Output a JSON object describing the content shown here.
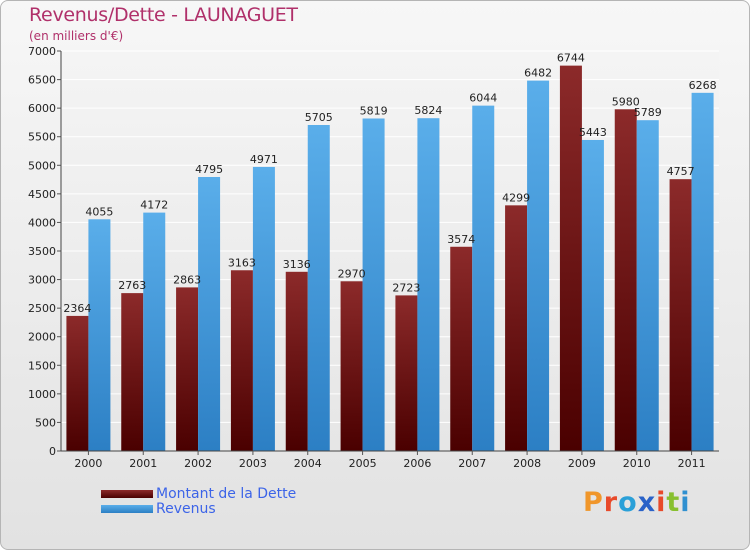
{
  "title": "Revenus/Dette - LAUNAGUET",
  "subtitle": "(en milliers d'€)",
  "brand": {
    "text": "Proxiti",
    "letter_colors": [
      "#f0962a",
      "#e84a2a",
      "#2aa0d8",
      "#2a62c8",
      "#e84a2a",
      "#88c030",
      "#3090d0"
    ]
  },
  "chart_data": {
    "type": "bar",
    "title": "Revenus/Dette - LAUNAGUET",
    "subtitle": "(en milliers d'€)",
    "categories": [
      "2000",
      "2001",
      "2002",
      "2003",
      "2004",
      "2005",
      "2006",
      "2007",
      "2008",
      "2009",
      "2010",
      "2011"
    ],
    "series": [
      {
        "name": "Montant de la Dette",
        "color": "#7a1a1a",
        "values": [
          2364,
          2763,
          2863,
          3163,
          3136,
          2970,
          2723,
          3574,
          4299,
          6744,
          5980,
          4757
        ]
      },
      {
        "name": "Revenus",
        "color": "#4aa3e6",
        "values": [
          4055,
          4172,
          4795,
          4971,
          5705,
          5819,
          5824,
          6044,
          6482,
          5443,
          5789,
          6268
        ]
      }
    ],
    "ylim": [
      0,
      7000
    ],
    "yticks": [
      0,
      500,
      1000,
      1500,
      2000,
      2500,
      3000,
      3500,
      4000,
      4500,
      5000,
      5500,
      6000,
      6500,
      7000
    ],
    "grid": true,
    "legend_position": "bottom-left"
  }
}
